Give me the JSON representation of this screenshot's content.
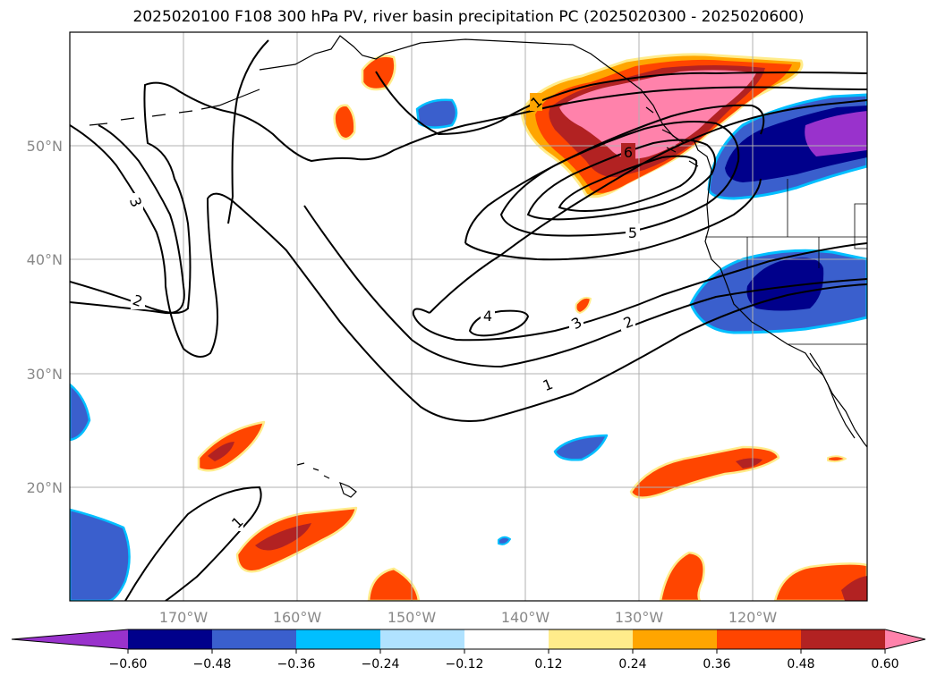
{
  "title": "2025020100 F108 300 hPa PV, river basin precipitation PC (2025020300 - 2025020600)",
  "lon_labels": [
    "170°W",
    "160°W",
    "150°W",
    "140°W",
    "130°W",
    "120°W"
  ],
  "lat_labels": [
    "50°N",
    "40°N",
    "30°N",
    "20°N"
  ],
  "contour_labels": [
    "1",
    "1",
    "1",
    "2",
    "2",
    "3",
    "3",
    "4",
    "5",
    "6"
  ],
  "colorbar": {
    "colors": [
      "#9932cc",
      "#00008b",
      "#3a5fcd",
      "#00bfff",
      "#b0e2ff",
      "#ffffff",
      "#ffec8b",
      "#ffa500",
      "#ff4500",
      "#b22222",
      "#ff82ab"
    ],
    "ticks": [
      "−0.60",
      "−0.48",
      "−0.36",
      "−0.24",
      "−0.12",
      "0.12",
      "0.24",
      "0.36",
      "0.48",
      "0.60"
    ]
  },
  "extent": {
    "lon": [
      -180,
      -110
    ],
    "lat": [
      10,
      60
    ]
  }
}
